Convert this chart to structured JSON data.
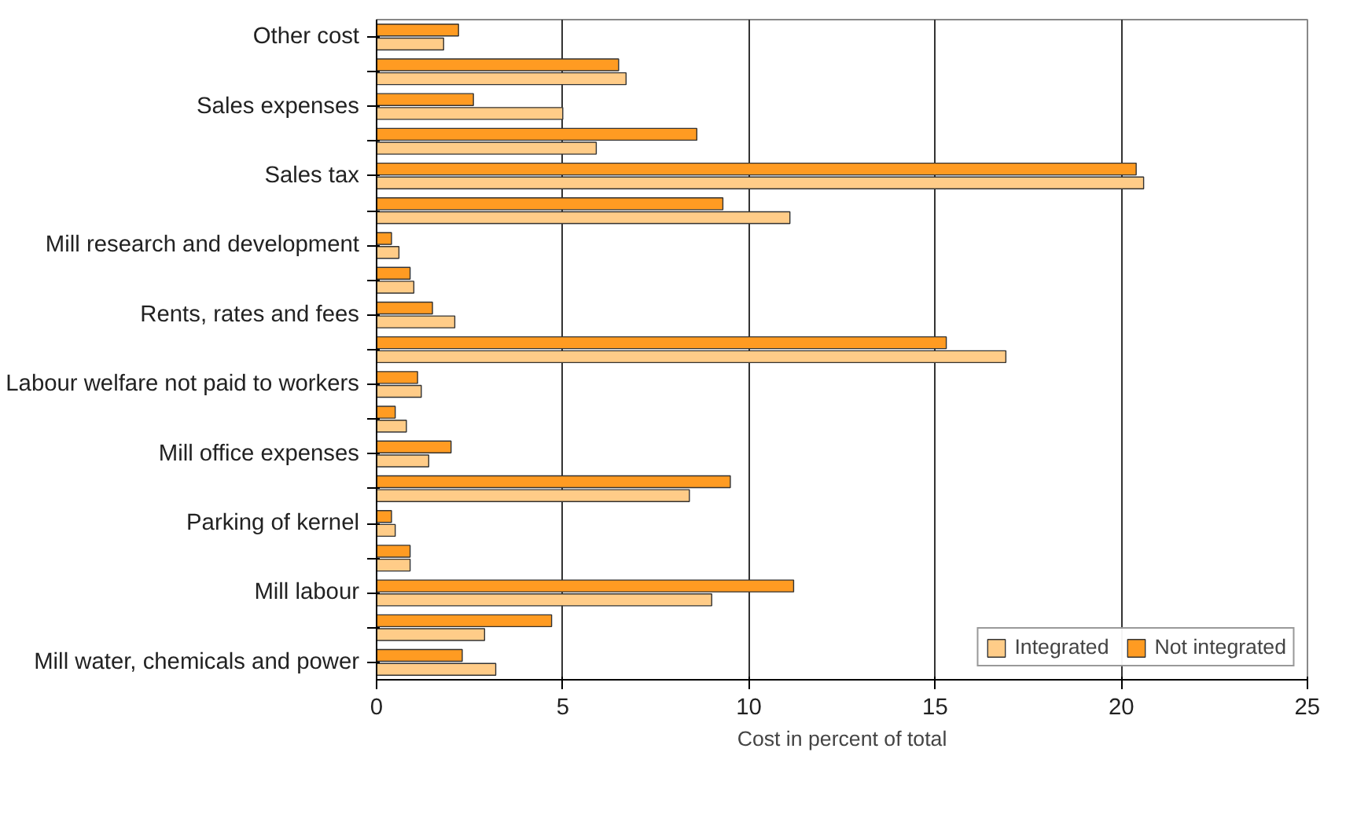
{
  "chart_data": {
    "type": "bar",
    "orientation": "horizontal",
    "xlabel": "Cost in percent of total",
    "categories": [
      "Other cost",
      null,
      "Sales expenses",
      null,
      "Sales tax",
      null,
      "Mill research and development",
      null,
      "Rents, rates and fees",
      null,
      "Labour welfare not paid to workers",
      null,
      "Mill office expenses",
      null,
      "Parking of kernel",
      null,
      "Mill labour",
      null,
      "Mill water, chemicals and power"
    ],
    "series": [
      {
        "name": "Integrated",
        "color": "#ffcc88",
        "values": [
          1.8,
          6.7,
          5.0,
          5.9,
          20.6,
          11.1,
          0.6,
          1.0,
          2.1,
          16.9,
          1.2,
          0.8,
          1.4,
          8.4,
          0.5,
          0.9,
          9.0,
          2.9,
          3.2
        ]
      },
      {
        "name": "Not integrated",
        "color": "#ff9b22",
        "values": [
          2.2,
          6.5,
          2.6,
          8.6,
          20.4,
          9.3,
          0.4,
          0.9,
          1.5,
          15.3,
          1.1,
          0.5,
          2.0,
          9.5,
          0.4,
          0.9,
          11.2,
          4.7,
          2.3
        ]
      }
    ],
    "xlim": [
      0,
      25
    ],
    "xticks": [
      0,
      5,
      10,
      15,
      20,
      25
    ],
    "grid": "x",
    "legend": "bottom"
  }
}
